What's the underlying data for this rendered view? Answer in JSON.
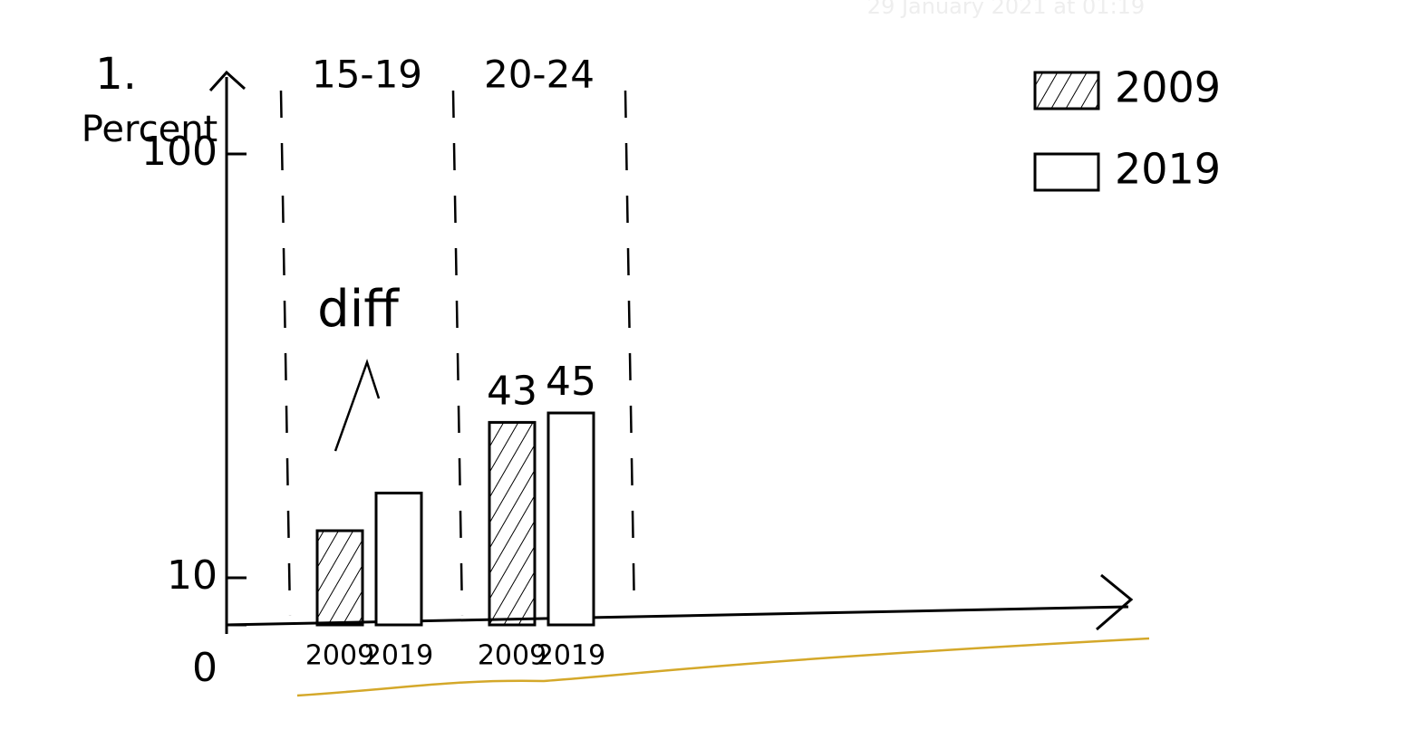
{
  "timestamp": "29 January 2021 at 01:19",
  "figure_number": "1.",
  "chart_data": {
    "type": "bar",
    "y_label": "Percent",
    "categories": [
      "15-19",
      "20-24"
    ],
    "series": [
      {
        "name": "2009",
        "color": "#000000",
        "pattern": "hatch",
        "values": [
          20,
          43
        ],
        "value_labels": [
          null,
          "43"
        ]
      },
      {
        "name": "2019",
        "color": "#000000",
        "pattern": "none",
        "values": [
          28,
          45
        ],
        "value_labels": [
          null,
          "45"
        ]
      }
    ],
    "ylim": [
      0,
      100
    ],
    "yticks": [
      0,
      10,
      100
    ],
    "annotation": "diff",
    "underline_color": "#d4a82a"
  }
}
